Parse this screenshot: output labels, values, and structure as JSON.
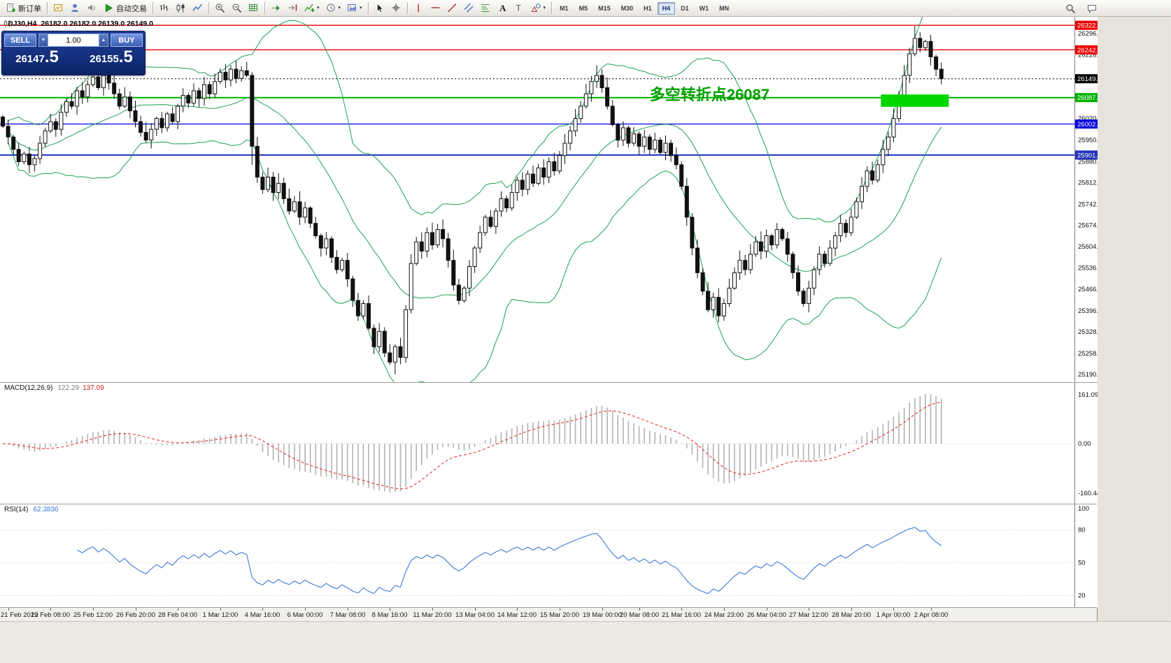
{
  "toolbar": {
    "groups": [
      {
        "items": [
          {
            "name": "new-order-button",
            "icon": "new-order",
            "label": "新订单"
          }
        ]
      },
      {
        "items": [
          {
            "name": "new-chart-button",
            "icon": "charts"
          },
          {
            "name": "profiles-button",
            "icon": "profile"
          },
          {
            "name": "alerts-button",
            "icon": "sound"
          },
          {
            "name": "autotrading-button",
            "icon": "play",
            "label": "自动交易"
          }
        ]
      },
      {
        "items": [
          {
            "name": "bar-chart-button",
            "icon": "bars"
          },
          {
            "name": "candlestick-chart-button",
            "icon": "candles"
          },
          {
            "name": "line-chart-button",
            "icon": "linechart"
          }
        ]
      },
      {
        "items": [
          {
            "name": "zoom-in-button",
            "icon": "zoom-in"
          },
          {
            "name": "zoom-out-button",
            "icon": "zoom-out"
          },
          {
            "name": "tile-windows-button",
            "icon": "grid"
          }
        ]
      },
      {
        "items": [
          {
            "name": "auto-scroll-button",
            "icon": "autoscroll"
          },
          {
            "name": "chart-shift-button",
            "icon": "shift"
          },
          {
            "name": "indicators-button",
            "icon": "indicators",
            "caret": true
          },
          {
            "name": "periods-button",
            "icon": "clock",
            "caret": true
          },
          {
            "name": "templates-button",
            "icon": "template",
            "caret": true
          }
        ]
      },
      {
        "items": [
          {
            "name": "cursor-button",
            "icon": "cursor"
          },
          {
            "name": "crosshair-button",
            "icon": "crosshair"
          }
        ]
      },
      {
        "items": [
          {
            "name": "vertical-line-button",
            "icon": "vline"
          },
          {
            "name": "horizontal-line-button",
            "icon": "hline"
          },
          {
            "name": "trendline-button",
            "icon": "trendline"
          },
          {
            "name": "equidistant-channel-button",
            "icon": "channel"
          },
          {
            "name": "fibonacci-button",
            "icon": "fibo"
          },
          {
            "name": "text-button",
            "icon": "text"
          },
          {
            "name": "text-label-button",
            "icon": "label"
          },
          {
            "name": "arrows-button",
            "icon": "shapes",
            "caret": true
          }
        ]
      }
    ],
    "timeframes": [
      "M1",
      "M5",
      "M15",
      "M30",
      "H1",
      "H4",
      "D1",
      "W1",
      "MN"
    ],
    "active_timeframe": "H4",
    "right_items": [
      {
        "name": "search-button",
        "icon": "search"
      },
      {
        "name": "community-button",
        "icon": "chat"
      }
    ]
  },
  "trade_panel": {
    "sell_label": "SELL",
    "buy_label": "BUY",
    "volume": "1.00",
    "spin_down": "▼",
    "spin_up": "▲",
    "sell_price": "26147",
    "sell_price_big": ".5",
    "buy_price": "26155",
    "buy_price_big": ".5"
  },
  "chart": {
    "symbol_title": "DJ30,H4",
    "ohlc_title": "26182.0 26182.0 26139.0 26149.0"
  },
  "chart_data": {
    "type": "candlestick",
    "symbol": "DJ30",
    "timeframe": "H4",
    "ohlc_display": {
      "open": "26182.0",
      "high": "26182.0",
      "low": "26139.0",
      "close": "26149.0"
    },
    "y_axis": {
      "min": 25165,
      "max": 26350,
      "ticks": [
        26296,
        26226,
        26020,
        25950,
        25880,
        25812,
        25742,
        25674,
        25604,
        25536,
        25466,
        25396,
        25328,
        25258,
        25190
      ]
    },
    "price_lines": [
      {
        "label": "26322.3",
        "price": 26322.3,
        "color": "#ee0000",
        "width": 1.3
      },
      {
        "label": "26242.8",
        "price": 26242.8,
        "color": "#ee0000",
        "width": 1.3
      },
      {
        "label": "26149.0",
        "price": 26149.0,
        "color": "#000000",
        "width": 1,
        "style": "dotted"
      },
      {
        "label": "26087.9",
        "price": 26087.9,
        "color": "#00b200",
        "width": 2
      },
      {
        "label": "26002.1",
        "price": 26002.1,
        "color": "#0000dd",
        "width": 1.3
      },
      {
        "label": "25901.7",
        "price": 25901.7,
        "color": "#2233bb",
        "width": 2
      }
    ],
    "first_open": 26025,
    "closes": [
      25995,
      25960,
      25920,
      25880,
      25905,
      25870,
      25890,
      25940,
      25980,
      26010,
      25985,
      26040,
      26075,
      26060,
      26110,
      26090,
      26130,
      26155,
      26120,
      26160,
      26135,
      26100,
      26060,
      26090,
      26045,
      26010,
      25975,
      25950,
      25985,
      26020,
      25990,
      26035,
      26010,
      26060,
      26095,
      26070,
      26110,
      26085,
      26130,
      26100,
      26140,
      26170,
      26145,
      26180,
      26150,
      26175,
      26160,
      25930,
      25830,
      25790,
      25830,
      25780,
      25810,
      25760,
      25720,
      25750,
      25700,
      25730,
      25680,
      25640,
      25600,
      25630,
      25570,
      25530,
      25560,
      25500,
      25430,
      25380,
      25420,
      25340,
      25280,
      25330,
      25260,
      25230,
      25280,
      25245,
      25400,
      25550,
      25620,
      25590,
      25650,
      25610,
      25660,
      25630,
      25560,
      25480,
      25430,
      25470,
      25540,
      25600,
      25650,
      25700,
      25670,
      25720,
      25760,
      25730,
      25780,
      25820,
      25790,
      25840,
      25810,
      25860,
      25830,
      25880,
      25850,
      25900,
      25940,
      25980,
      26020,
      26060,
      26100,
      26140,
      26160,
      26120,
      26060,
      26000,
      25950,
      25990,
      25940,
      25970,
      25930,
      25960,
      25920,
      25950,
      25910,
      25940,
      25900,
      25870,
      25800,
      25700,
      25600,
      25520,
      25460,
      25400,
      25440,
      25380,
      25420,
      25470,
      25520,
      25560,
      25530,
      25580,
      25620,
      25590,
      25640,
      25610,
      25660,
      25630,
      25580,
      25520,
      25460,
      25420,
      25470,
      25530,
      25580,
      25550,
      25600,
      25640,
      25680,
      25650,
      25700,
      25750,
      25800,
      25850,
      25820,
      25870,
      25920,
      25960,
      26020,
      26090,
      26160,
      26230,
      26280,
      26250,
      26270,
      26220,
      26180,
      26149
    ],
    "wick_overrides": {
      "17": [
        45,
        8
      ],
      "47": [
        10,
        60
      ],
      "74": [
        8,
        40
      ],
      "172": [
        40,
        8
      ]
    },
    "bollinger": {
      "period": 20,
      "deviation": 2,
      "color": "#1ba153"
    },
    "highlight_rect": {
      "start_index": 166,
      "end_index": 178,
      "price_top": 26098,
      "price_bottom": 26058,
      "color": "#00d800"
    },
    "annotation": {
      "text": "多空转折点26087",
      "index": 122,
      "price": 26099,
      "color": "#00a000"
    },
    "macd": {
      "label": "MACD(12,26,9)",
      "value_main": "122.29",
      "value_signal": "137.09",
      "scale_max": "161.09",
      "scale_zero": "0.00",
      "scale_min": "-160.44",
      "histogram_color": "#b2b2b2",
      "signal_color": "#e03434"
    },
    "rsi": {
      "label": "RSI(14)",
      "value": "62.3836",
      "levels": [
        80,
        50,
        20
      ],
      "scale_labels": [
        100,
        80,
        50,
        20
      ],
      "color": "#3c78d8"
    },
    "x_axis": {
      "labels": [
        {
          "text": "21 Feb 2019",
          "index": 1
        },
        {
          "text": "22 Feb 08:00",
          "index": 9
        },
        {
          "text": "25 Feb 12:00",
          "index": 17
        },
        {
          "text": "26 Feb 20:00",
          "index": 25
        },
        {
          "text": "28 Feb 04:00",
          "index": 33
        },
        {
          "text": "1 Mar 12:00",
          "index": 41
        },
        {
          "text": "4 Mar 16:00",
          "index": 49
        },
        {
          "text": "6 Mar 00:00",
          "index": 57
        },
        {
          "text": "7 Mar 08:00",
          "index": 65
        },
        {
          "text": "8 Mar 16:00",
          "index": 73
        },
        {
          "text": "11 Mar 20:00",
          "index": 81
        },
        {
          "text": "13 Mar 04:00",
          "index": 89
        },
        {
          "text": "14 Mar 12:00",
          "index": 97
        },
        {
          "text": "15 Mar 20:00",
          "index": 105
        },
        {
          "text": "19 Mar 00:00",
          "index": 113
        },
        {
          "text": "20 Mar 08:00",
          "index": 120
        },
        {
          "text": "21 Mar 16:00",
          "index": 128
        },
        {
          "text": "24 Mar 23:00",
          "index": 136
        },
        {
          "text": "26 Mar 04:00",
          "index": 144
        },
        {
          "text": "27 Mar 12:00",
          "index": 152
        },
        {
          "text": "28 Mar 20:00",
          "index": 160
        },
        {
          "text": "1 Apr 00:00",
          "index": 168
        },
        {
          "text": "2 Apr 08:00",
          "index": 175
        }
      ]
    }
  }
}
